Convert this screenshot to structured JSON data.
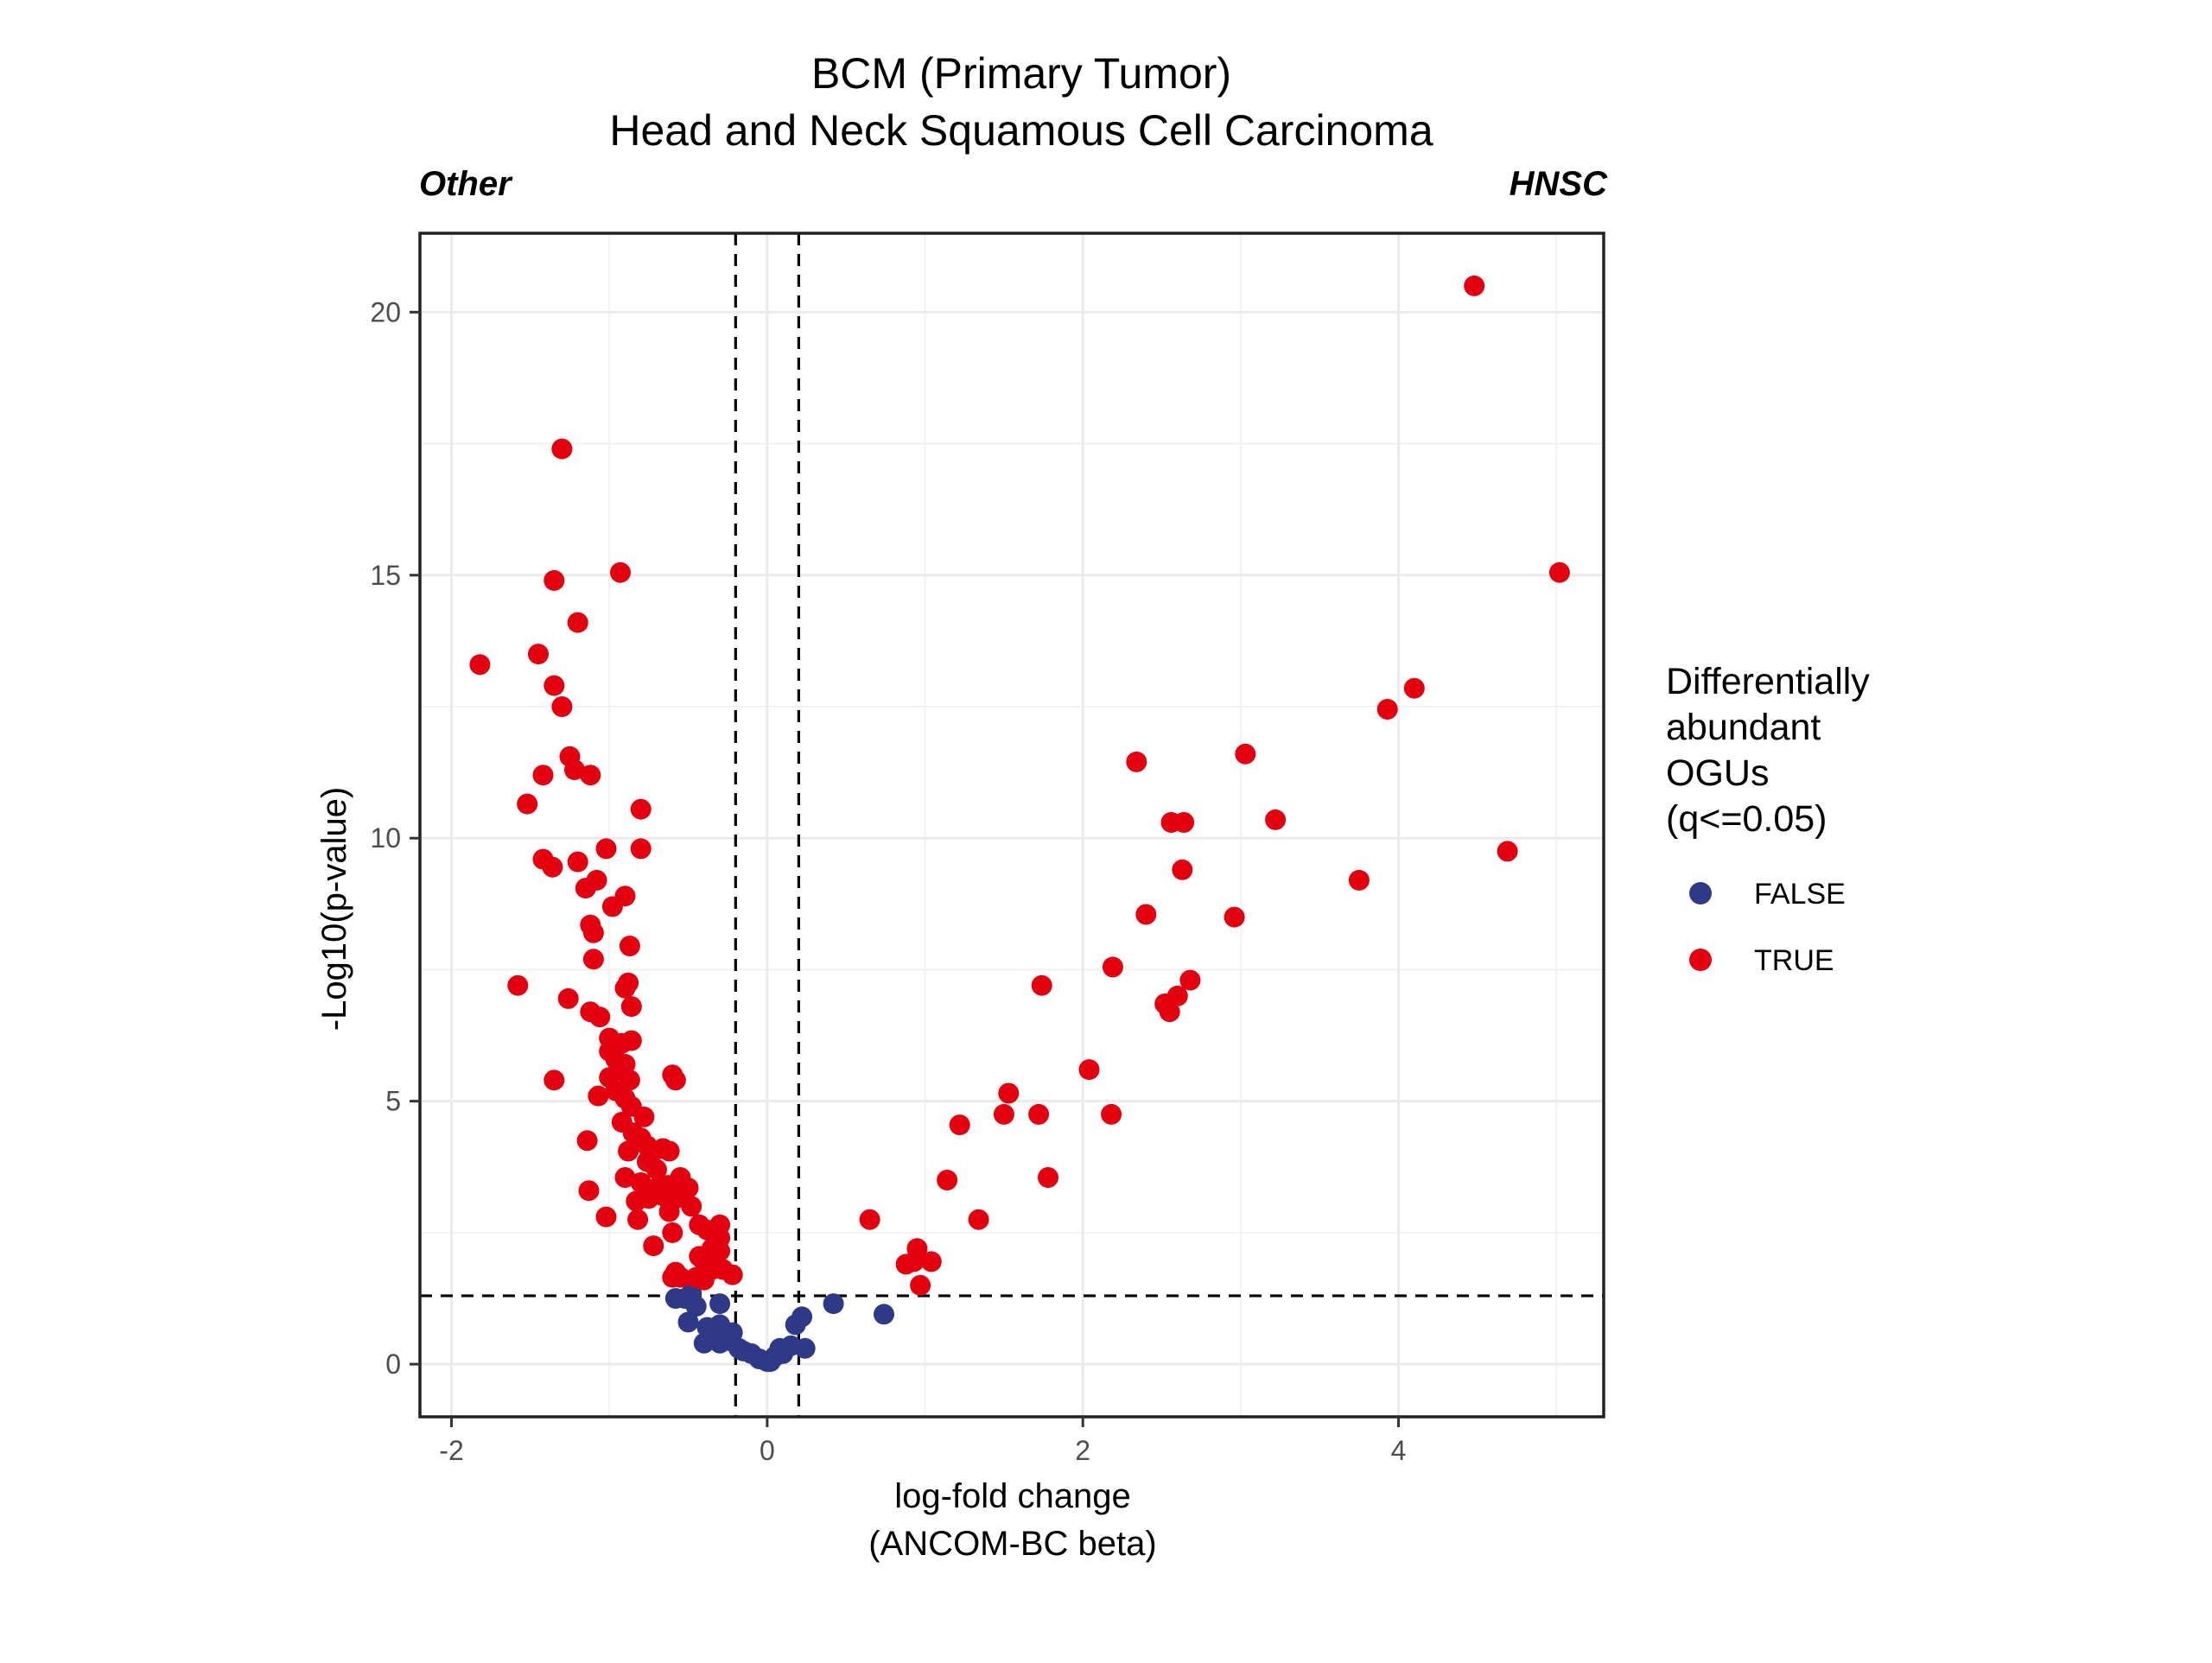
{
  "chart_data": {
    "type": "scatter",
    "title": "BCM (Primary Tumor)",
    "subtitle": "Head and Neck Squamous Cell Carcinoma",
    "left_annotation": "Other",
    "right_annotation": "HNSC",
    "xlabel_line1": "log-fold change",
    "xlabel_line2": "(ANCOM-BC beta)",
    "ylabel": "-Log10(p-value)",
    "xlim": [
      -2.2,
      5.3
    ],
    "ylim": [
      -1.0,
      21.5
    ],
    "x_ticks": [
      -2,
      0,
      2,
      4
    ],
    "y_ticks": [
      0,
      5,
      10,
      15,
      20
    ],
    "grid": true,
    "thresholds": {
      "x": [
        -0.2,
        0.2
      ],
      "y": 1.3
    },
    "legend": {
      "position": "right",
      "title_lines": [
        "Differentially",
        "abundant",
        "OGUs",
        "(q<=0.05)"
      ],
      "entries": [
        {
          "label": "FALSE",
          "color": "#2e3a87"
        },
        {
          "label": "TRUE",
          "color": "#e3000f"
        }
      ]
    },
    "series": [
      {
        "name": "FALSE",
        "color": "#2e3a87",
        "points": [
          [
            -0.58,
            1.25
          ],
          [
            -0.52,
            1.25
          ],
          [
            -0.48,
            1.35
          ],
          [
            -0.45,
            1.1
          ],
          [
            -0.5,
            0.8
          ],
          [
            -0.3,
            1.15
          ],
          [
            -0.38,
            0.7
          ],
          [
            -0.3,
            0.75
          ],
          [
            -0.22,
            0.6
          ],
          [
            -0.4,
            0.4
          ],
          [
            -0.3,
            0.4
          ],
          [
            -0.25,
            0.45
          ],
          [
            -0.18,
            0.3
          ],
          [
            -0.15,
            0.25
          ],
          [
            -0.1,
            0.2
          ],
          [
            -0.05,
            0.1
          ],
          [
            0.0,
            0.05
          ],
          [
            0.02,
            0.05
          ],
          [
            0.05,
            0.15
          ],
          [
            0.08,
            0.3
          ],
          [
            0.1,
            0.2
          ],
          [
            0.15,
            0.35
          ],
          [
            0.18,
            0.75
          ],
          [
            0.22,
            0.9
          ],
          [
            0.24,
            0.3
          ],
          [
            0.42,
            1.15
          ],
          [
            0.74,
            0.95
          ]
        ]
      },
      {
        "name": "TRUE",
        "color": "#e3000f",
        "points": [
          [
            -1.82,
            13.3
          ],
          [
            -1.3,
            17.4
          ],
          [
            -1.35,
            14.9
          ],
          [
            -0.93,
            15.05
          ],
          [
            -1.2,
            14.1
          ],
          [
            -1.45,
            13.5
          ],
          [
            -1.35,
            12.9
          ],
          [
            -1.3,
            12.5
          ],
          [
            -1.25,
            11.55
          ],
          [
            -1.42,
            11.2
          ],
          [
            -1.22,
            11.3
          ],
          [
            -1.12,
            11.2
          ],
          [
            -1.52,
            10.65
          ],
          [
            -0.8,
            10.55
          ],
          [
            -1.02,
            9.8
          ],
          [
            -0.8,
            9.8
          ],
          [
            -1.42,
            9.6
          ],
          [
            -1.36,
            9.45
          ],
          [
            -1.2,
            9.55
          ],
          [
            -1.08,
            9.2
          ],
          [
            -1.15,
            9.05
          ],
          [
            -0.9,
            8.9
          ],
          [
            -0.98,
            8.7
          ],
          [
            -1.12,
            8.35
          ],
          [
            -1.1,
            8.2
          ],
          [
            -0.87,
            7.95
          ],
          [
            -1.1,
            7.7
          ],
          [
            -1.58,
            7.2
          ],
          [
            -0.88,
            7.25
          ],
          [
            -0.9,
            7.15
          ],
          [
            -1.26,
            6.95
          ],
          [
            -1.12,
            6.7
          ],
          [
            -1.06,
            6.6
          ],
          [
            -0.86,
            6.8
          ],
          [
            -1.0,
            6.2
          ],
          [
            -0.92,
            6.1
          ],
          [
            -0.86,
            6.15
          ],
          [
            -1.0,
            5.95
          ],
          [
            -0.96,
            5.8
          ],
          [
            -0.9,
            5.7
          ],
          [
            -0.94,
            5.6
          ],
          [
            -1.0,
            5.45
          ],
          [
            -0.87,
            5.4
          ],
          [
            -0.6,
            5.5
          ],
          [
            -0.58,
            5.4
          ],
          [
            -1.35,
            5.4
          ],
          [
            -0.96,
            5.2
          ],
          [
            -1.07,
            5.1
          ],
          [
            -0.9,
            5.05
          ],
          [
            -0.86,
            4.9
          ],
          [
            -0.92,
            4.6
          ],
          [
            -0.78,
            4.7
          ],
          [
            -0.85,
            4.4
          ],
          [
            -0.8,
            4.3
          ],
          [
            -0.76,
            4.15
          ],
          [
            -0.88,
            4.05
          ],
          [
            -0.72,
            4.05
          ],
          [
            -0.66,
            4.1
          ],
          [
            -0.62,
            4.05
          ],
          [
            -0.76,
            3.85
          ],
          [
            -0.7,
            3.7
          ],
          [
            -1.14,
            4.25
          ],
          [
            -0.9,
            3.55
          ],
          [
            -0.8,
            3.45
          ],
          [
            -0.7,
            3.35
          ],
          [
            -0.63,
            3.4
          ],
          [
            -0.55,
            3.55
          ],
          [
            -0.5,
            3.35
          ],
          [
            -0.66,
            3.2
          ],
          [
            -0.58,
            3.15
          ],
          [
            -0.75,
            3.15
          ],
          [
            -0.83,
            3.1
          ],
          [
            -0.48,
            3.0
          ],
          [
            -1.13,
            3.3
          ],
          [
            -0.62,
            2.9
          ],
          [
            -1.02,
            2.8
          ],
          [
            -0.82,
            2.75
          ],
          [
            -0.43,
            2.65
          ],
          [
            -0.3,
            2.65
          ],
          [
            -0.38,
            2.55
          ],
          [
            -0.6,
            2.5
          ],
          [
            -0.3,
            2.4
          ],
          [
            -0.72,
            2.25
          ],
          [
            -0.35,
            2.2
          ],
          [
            -0.3,
            2.15
          ],
          [
            -0.43,
            2.05
          ],
          [
            -0.4,
            1.95
          ],
          [
            -0.35,
            1.8
          ],
          [
            -0.28,
            1.8
          ],
          [
            -0.22,
            1.7
          ],
          [
            -0.58,
            1.75
          ],
          [
            -0.55,
            1.65
          ],
          [
            -0.6,
            1.65
          ],
          [
            -0.4,
            1.6
          ],
          [
            -0.45,
            1.65
          ],
          [
            0.65,
            2.75
          ],
          [
            0.95,
            2.2
          ],
          [
            0.88,
            1.9
          ],
          [
            0.93,
            1.95
          ],
          [
            1.04,
            1.95
          ],
          [
            0.97,
            1.5
          ],
          [
            1.14,
            3.5
          ],
          [
            1.22,
            4.55
          ],
          [
            1.34,
            2.75
          ],
          [
            1.5,
            4.75
          ],
          [
            1.53,
            5.15
          ],
          [
            1.72,
            4.75
          ],
          [
            1.74,
            7.2
          ],
          [
            1.78,
            3.55
          ],
          [
            2.04,
            5.6
          ],
          [
            2.18,
            4.75
          ],
          [
            2.19,
            7.55
          ],
          [
            2.34,
            11.45
          ],
          [
            2.4,
            8.55
          ],
          [
            2.52,
            6.85
          ],
          [
            2.56,
            10.3
          ],
          [
            2.55,
            6.7
          ],
          [
            2.6,
            7.0
          ],
          [
            2.63,
            9.4
          ],
          [
            2.64,
            10.3
          ],
          [
            2.68,
            7.3
          ],
          [
            2.96,
            8.5
          ],
          [
            3.03,
            11.6
          ],
          [
            3.22,
            10.35
          ],
          [
            3.75,
            9.2
          ],
          [
            3.93,
            12.45
          ],
          [
            4.1,
            12.85
          ],
          [
            4.48,
            20.5
          ],
          [
            4.69,
            9.75
          ],
          [
            5.02,
            15.05
          ]
        ]
      }
    ]
  }
}
